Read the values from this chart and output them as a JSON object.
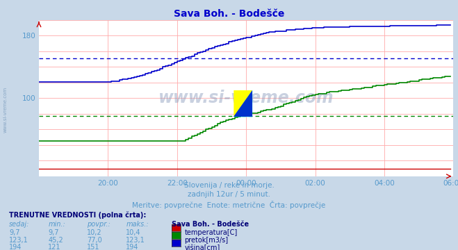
{
  "title": "Sava Boh. - Bodešče",
  "bg_color": "#c8d8e8",
  "plot_bg_color": "#ffffff",
  "grid_color": "#ffcccc",
  "xmin": 0,
  "xmax": 144,
  "ymin": 0,
  "ymax": 200,
  "ytick_vals": [
    100,
    180
  ],
  "ytick_labels": [
    "100",
    "180"
  ],
  "xtick_positions": [
    24,
    48,
    72,
    96,
    120,
    144
  ],
  "xtick_labels": [
    "20:00",
    "22:00",
    "00:00",
    "02:00",
    "04:00",
    "06:00"
  ],
  "temp_color": "#cc0000",
  "pretok_color": "#008800",
  "visina_color": "#0000cc",
  "avg_pretok": 77.0,
  "avg_visina": 151,
  "subtitle1": "Slovenija / reke in morje.",
  "subtitle2": "zadnjih 12ur / 5 minut.",
  "subtitle3": "Meritve: povprečne  Enote: metrične  Črta: povprečje",
  "table_title": "TRENUTNE VREDNOSTI (polna črta):",
  "row_temp": [
    "9,7",
    "9,7",
    "10,2",
    "10,4"
  ],
  "row_pretok": [
    "123,1",
    "45,2",
    "77,0",
    "123,1"
  ],
  "row_visina": [
    "194",
    "121",
    "151",
    "194"
  ],
  "station_label": "Sava Boh. - Bodešče",
  "legend_temp": "temperatura[C]",
  "legend_pretok": "pretok[m3/s]",
  "legend_visina": "višina[cm]",
  "watermark": "www.si-vreme.com"
}
